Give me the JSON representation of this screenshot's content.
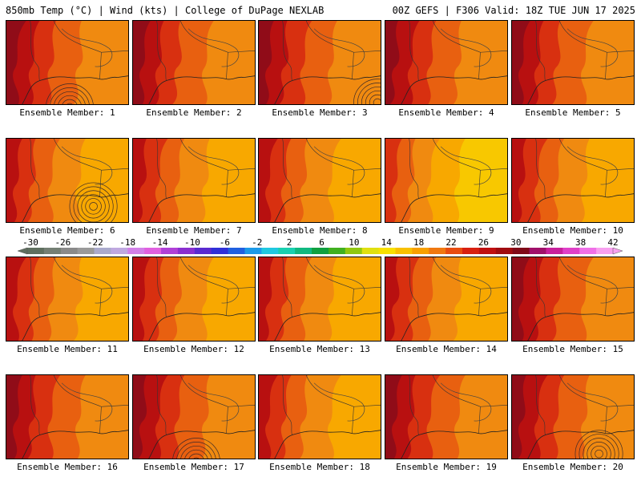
{
  "header": {
    "left": "850mb Temp (°C) | Wind (kts) | College of DuPage NEXLAB",
    "right": "00Z GEFS | F306 Valid: 18Z TUE JUN 17 2025"
  },
  "members": [
    {
      "label": "Ensemble Member: 1",
      "warm": 0.7,
      "hurricane": "bottom"
    },
    {
      "label": "Ensemble Member: 2",
      "warm": 0.75,
      "hurricane": ""
    },
    {
      "label": "Ensemble Member: 3",
      "warm": 0.72,
      "hurricane": "corner"
    },
    {
      "label": "Ensemble Member: 4",
      "warm": 0.8,
      "hurricane": ""
    },
    {
      "label": "Ensemble Member: 5",
      "warm": 0.65,
      "hurricane": ""
    },
    {
      "label": "Ensemble Member: 6",
      "warm": 0.45,
      "hurricane": "center"
    },
    {
      "label": "Ensemble Member: 7",
      "warm": 0.5,
      "hurricane": ""
    },
    {
      "label": "Ensemble Member: 8",
      "warm": 0.55,
      "hurricane": ""
    },
    {
      "label": "Ensemble Member: 9",
      "warm": 0.25,
      "hurricane": ""
    },
    {
      "label": "Ensemble Member: 10",
      "warm": 0.55,
      "hurricane": ""
    },
    {
      "label": "Ensemble Member: 11",
      "warm": 0.55,
      "hurricane": ""
    },
    {
      "label": "Ensemble Member: 12",
      "warm": 0.5,
      "hurricane": ""
    },
    {
      "label": "Ensemble Member: 13",
      "warm": 0.6,
      "hurricane": ""
    },
    {
      "label": "Ensemble Member: 14",
      "warm": 0.55,
      "hurricane": ""
    },
    {
      "label": "Ensemble Member: 15",
      "warm": 0.7,
      "hurricane": ""
    },
    {
      "label": "Ensemble Member: 16",
      "warm": 0.75,
      "hurricane": ""
    },
    {
      "label": "Ensemble Member: 17",
      "warm": 0.85,
      "hurricane": "bottom"
    },
    {
      "label": "Ensemble Member: 18",
      "warm": 0.6,
      "hurricane": ""
    },
    {
      "label": "Ensemble Member: 19",
      "warm": 0.78,
      "hurricane": ""
    },
    {
      "label": "Ensemble Member: 20",
      "warm": 0.72,
      "hurricane": "right"
    }
  ],
  "colorbar": {
    "ticks": [
      "-30",
      "-26",
      "-22",
      "-18",
      "-14",
      "-10",
      "-6",
      "-2",
      "2",
      "6",
      "10",
      "14",
      "18",
      "22",
      "26",
      "30",
      "34",
      "38",
      "42"
    ],
    "colors": [
      "#5f6f5f",
      "#747f74",
      "#8a8a8a",
      "#9a9a9a",
      "#aaaacc",
      "#bfa8e0",
      "#d27fe8",
      "#e060e0",
      "#b040d8",
      "#8a2fd0",
      "#5a2ad0",
      "#3030d8",
      "#2060e0",
      "#1c9ae8",
      "#20c8e0",
      "#18d0b0",
      "#10b880",
      "#10a040",
      "#40b020",
      "#90c810",
      "#e0e010",
      "#f8e000",
      "#f8c000",
      "#f8a000",
      "#f07810",
      "#e84c10",
      "#d82010",
      "#c01010",
      "#a00c10",
      "#800a18",
      "#a0106a",
      "#c8209c",
      "#e040c8",
      "#f070e8",
      "#f8a0f0"
    ]
  }
}
